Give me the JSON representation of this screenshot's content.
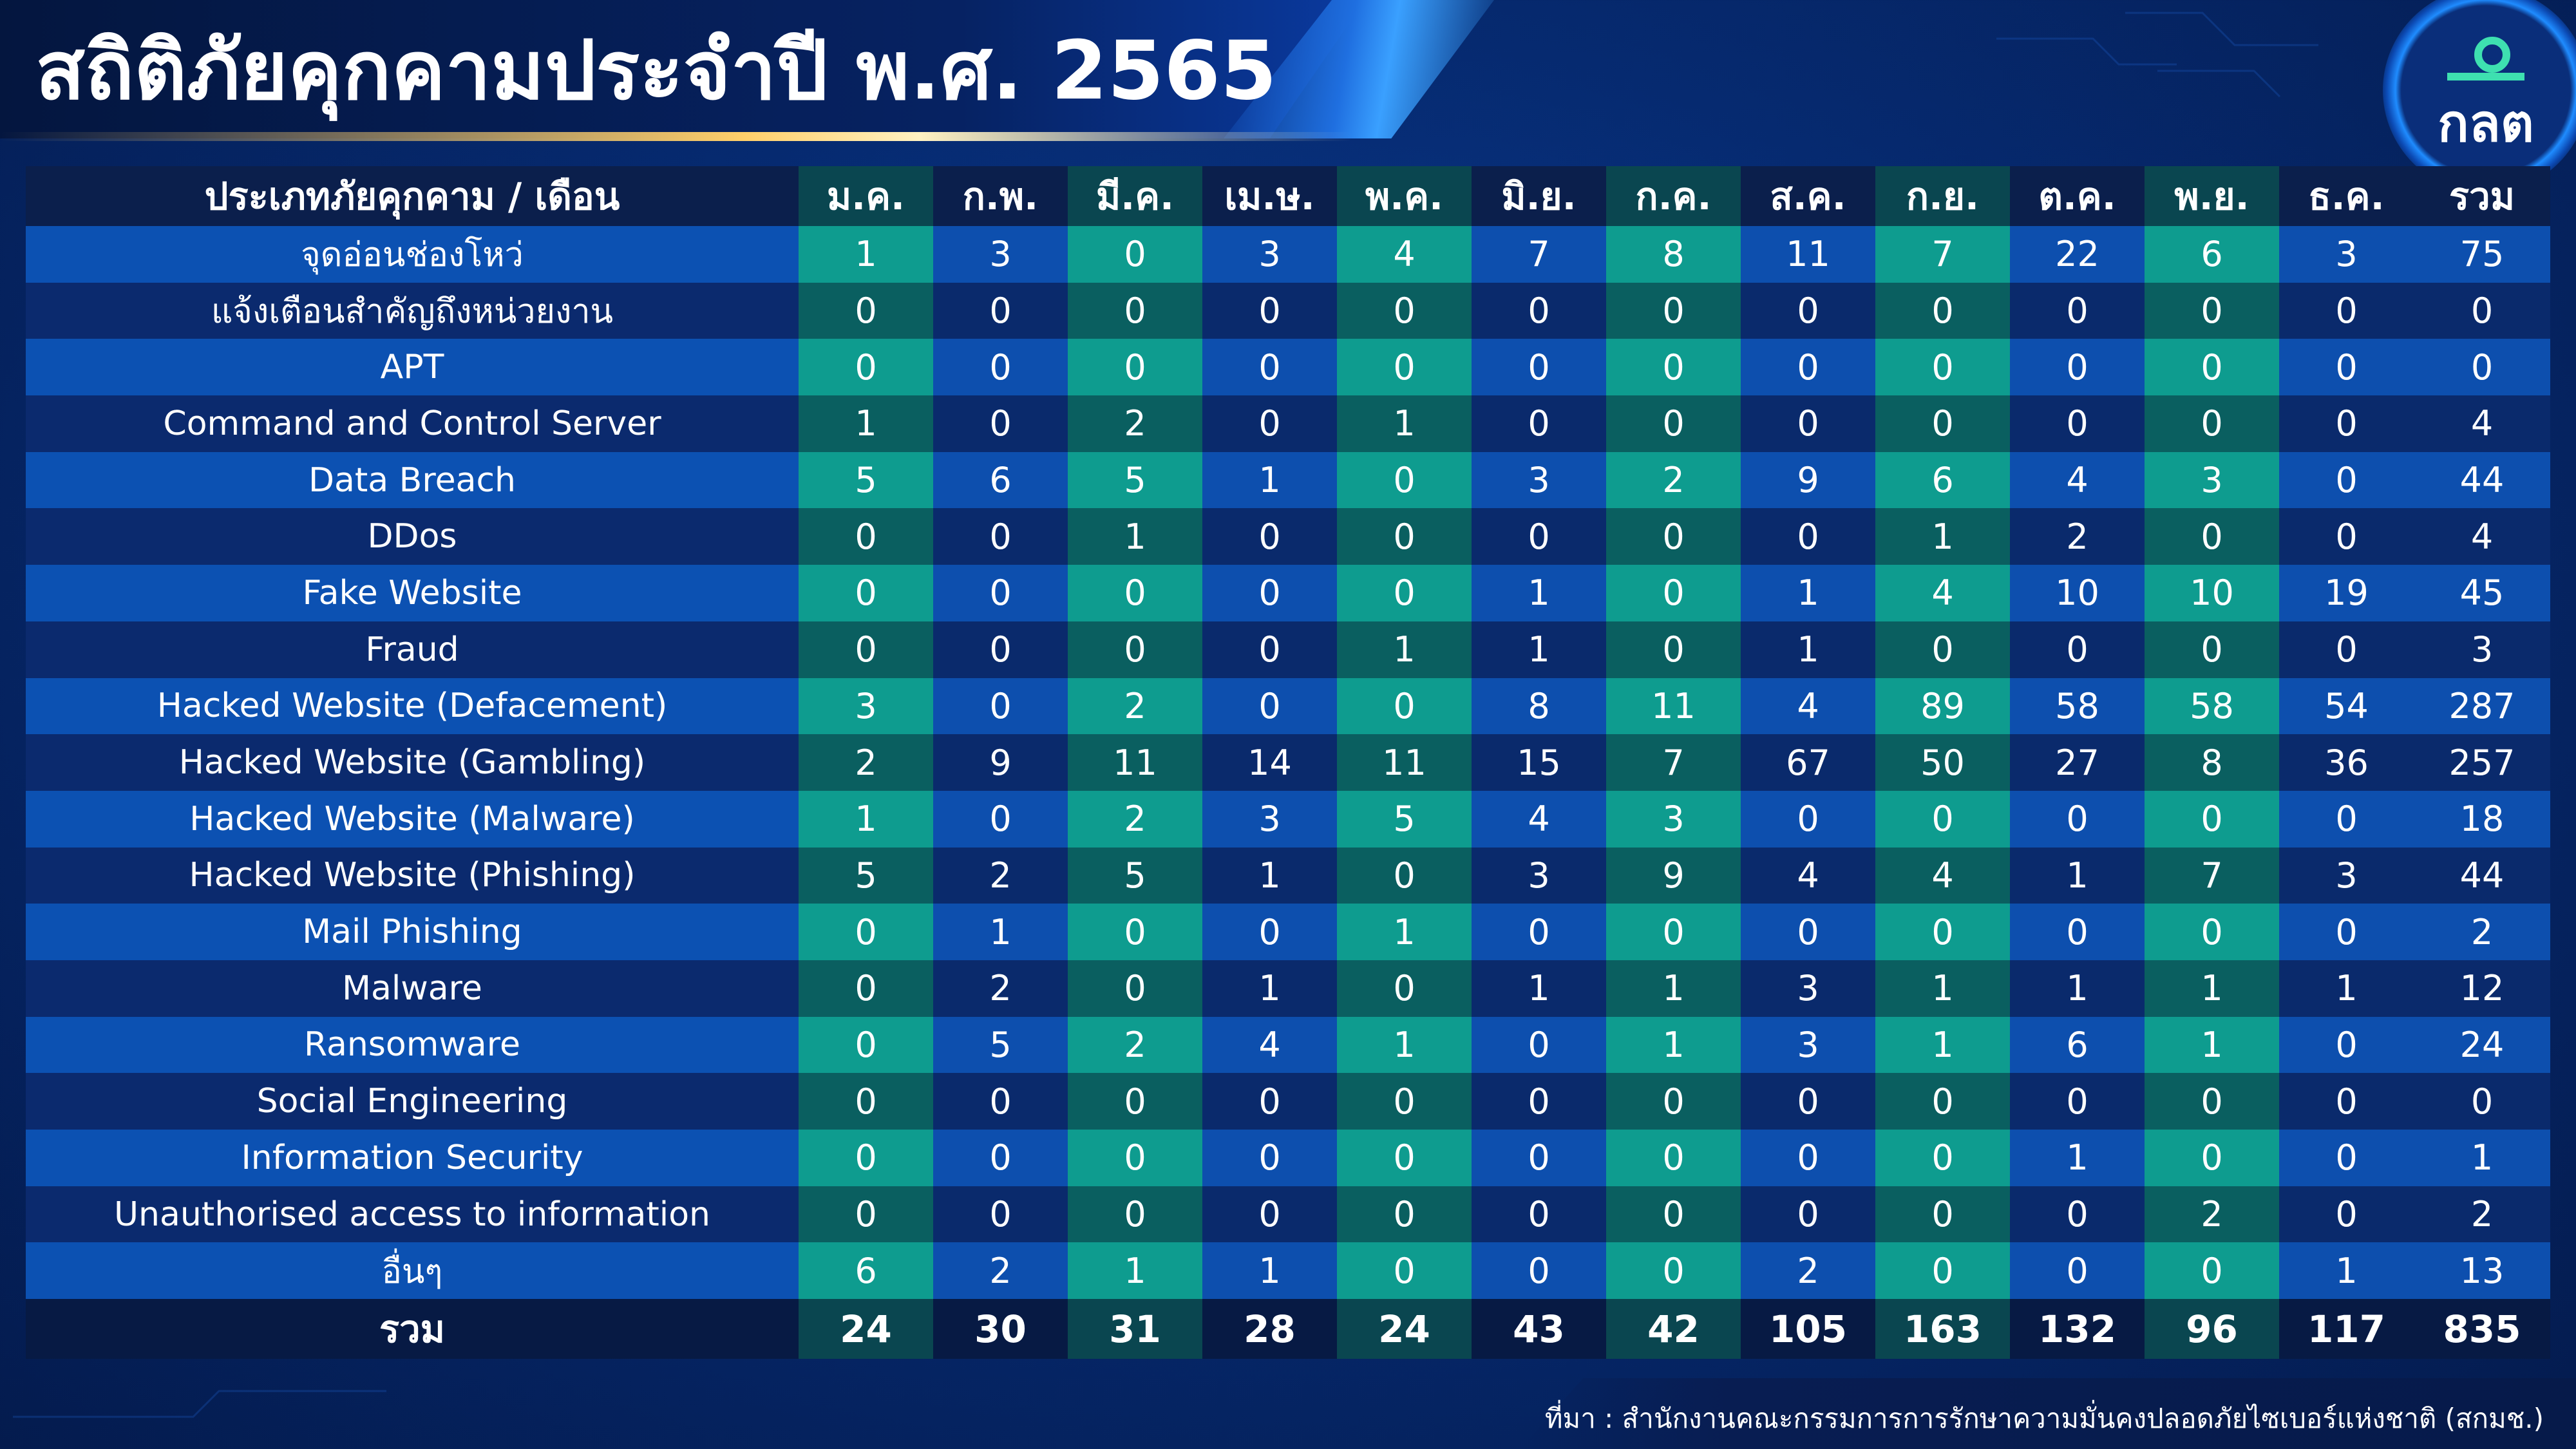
{
  "title": "สถิติภัยคุกคามประจำปี พ.ศ. 2565",
  "logo": {
    "text": "กลต"
  },
  "source": "ที่มา : สำนักงานคณะกรรมการการรักษาความมั่นคงปลอดภัยไซเบอร์แห่งชาติ (สกมช.)",
  "colors": {
    "teal_cell": "#0e9c8f",
    "blue_cell": "#0d4fae",
    "dark_teal_cell": "#0a5f60",
    "dark_blue_cell": "#0a2a6c",
    "header": "#0b1f4c",
    "background": "#062a70"
  },
  "chart_data": {
    "type": "table",
    "header_category": "ประเภทภัยคุกคาม / เดือน",
    "columns": [
      "ม.ค.",
      "ก.พ.",
      "มี.ค.",
      "เม.ษ.",
      "พ.ค.",
      "มิ.ย.",
      "ก.ค.",
      "ส.ค.",
      "ก.ย.",
      "ต.ค.",
      "พ.ย.",
      "ธ.ค.",
      "รวม"
    ],
    "rows": [
      {
        "category": "จุดอ่อนช่องโหว่",
        "values": [
          1,
          3,
          0,
          3,
          4,
          7,
          8,
          11,
          7,
          22,
          6,
          3,
          75
        ]
      },
      {
        "category": "แจ้งเตือนสำคัญถึงหน่วยงาน",
        "values": [
          0,
          0,
          0,
          0,
          0,
          0,
          0,
          0,
          0,
          0,
          0,
          0,
          0
        ]
      },
      {
        "category": "APT",
        "values": [
          0,
          0,
          0,
          0,
          0,
          0,
          0,
          0,
          0,
          0,
          0,
          0,
          0
        ]
      },
      {
        "category": "Command and Control Server",
        "values": [
          1,
          0,
          2,
          0,
          1,
          0,
          0,
          0,
          0,
          0,
          0,
          0,
          4
        ]
      },
      {
        "category": "Data Breach",
        "values": [
          5,
          6,
          5,
          1,
          0,
          3,
          2,
          9,
          6,
          4,
          3,
          0,
          44
        ]
      },
      {
        "category": "DDos",
        "values": [
          0,
          0,
          1,
          0,
          0,
          0,
          0,
          0,
          1,
          2,
          0,
          0,
          4
        ]
      },
      {
        "category": "Fake Website",
        "values": [
          0,
          0,
          0,
          0,
          0,
          1,
          0,
          1,
          4,
          10,
          10,
          19,
          45
        ]
      },
      {
        "category": "Fraud",
        "values": [
          0,
          0,
          0,
          0,
          1,
          1,
          0,
          1,
          0,
          0,
          0,
          0,
          3
        ]
      },
      {
        "category": "Hacked Website (Defacement)",
        "values": [
          3,
          0,
          2,
          0,
          0,
          8,
          11,
          4,
          89,
          58,
          58,
          54,
          287
        ]
      },
      {
        "category": "Hacked Website (Gambling)",
        "values": [
          2,
          9,
          11,
          14,
          11,
          15,
          7,
          67,
          50,
          27,
          8,
          36,
          257
        ]
      },
      {
        "category": "Hacked Website (Malware)",
        "values": [
          1,
          0,
          2,
          3,
          5,
          4,
          3,
          0,
          0,
          0,
          0,
          0,
          18
        ]
      },
      {
        "category": "Hacked Website (Phishing)",
        "values": [
          5,
          2,
          5,
          1,
          0,
          3,
          9,
          4,
          4,
          1,
          7,
          3,
          44
        ]
      },
      {
        "category": "Mail Phishing",
        "values": [
          0,
          1,
          0,
          0,
          1,
          0,
          0,
          0,
          0,
          0,
          0,
          0,
          2
        ]
      },
      {
        "category": "Malware",
        "values": [
          0,
          2,
          0,
          1,
          0,
          1,
          1,
          3,
          1,
          1,
          1,
          1,
          12
        ]
      },
      {
        "category": "Ransomware",
        "values": [
          0,
          5,
          2,
          4,
          1,
          0,
          1,
          3,
          1,
          6,
          1,
          0,
          24
        ]
      },
      {
        "category": "Social Engineering",
        "values": [
          0,
          0,
          0,
          0,
          0,
          0,
          0,
          0,
          0,
          0,
          0,
          0,
          0
        ]
      },
      {
        "category": "Information Security",
        "values": [
          0,
          0,
          0,
          0,
          0,
          0,
          0,
          0,
          0,
          1,
          0,
          0,
          1
        ]
      },
      {
        "category": "Unauthorised access to information",
        "values": [
          0,
          0,
          0,
          0,
          0,
          0,
          0,
          0,
          0,
          0,
          2,
          0,
          2
        ]
      },
      {
        "category": "อื่นๆ",
        "values": [
          6,
          2,
          1,
          1,
          0,
          0,
          0,
          2,
          0,
          0,
          0,
          1,
          13
        ]
      }
    ],
    "total_row": {
      "category": "รวม",
      "values": [
        24,
        30,
        31,
        28,
        24,
        43,
        42,
        105,
        163,
        132,
        96,
        117,
        835
      ]
    }
  }
}
